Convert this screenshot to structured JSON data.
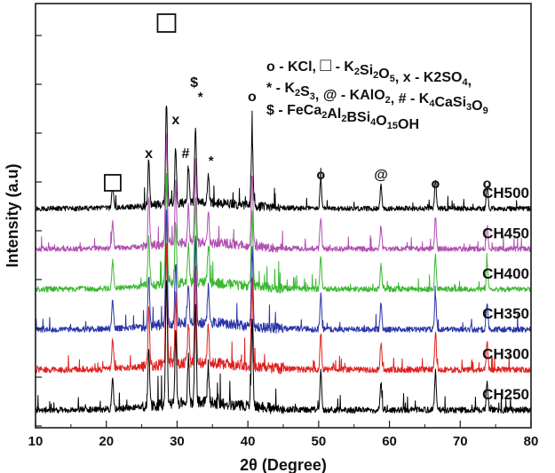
{
  "chart_data": {
    "type": "line",
    "title": "",
    "xlabel": "2θ (Degree)",
    "ylabel": "Intensity (a.u)",
    "xlim": [
      10,
      80
    ],
    "xticks": [
      10,
      20,
      30,
      40,
      50,
      60,
      70,
      80
    ],
    "y_ticks_labeled": false,
    "grid": false,
    "legend_position": "top-right",
    "legend_lines": [
      [
        {
          "text": "o - KCl, "
        },
        {
          "icon": "square"
        },
        {
          "text": " - K"
        },
        {
          "sub": "2"
        },
        {
          "text": "Si"
        },
        {
          "sub": "2"
        },
        {
          "text": "O"
        },
        {
          "sub": "5"
        },
        {
          "text": ", x - K2SO"
        },
        {
          "sub": "4"
        },
        {
          "text": ","
        }
      ],
      [
        {
          "text": "* - K"
        },
        {
          "sub": "2"
        },
        {
          "text": "S"
        },
        {
          "sub": "3"
        },
        {
          "text": ", @ - KAlO"
        },
        {
          "sub": "2"
        },
        {
          "text": ", # - K"
        },
        {
          "sub": "4"
        },
        {
          "text": "CaSi"
        },
        {
          "sub": "3"
        },
        {
          "text": "O"
        },
        {
          "sub": "9"
        }
      ],
      [
        {
          "text": "$ - FeCa"
        },
        {
          "sub": "2"
        },
        {
          "text": "Al"
        },
        {
          "sub": "2"
        },
        {
          "text": "BSi"
        },
        {
          "sub": "4"
        },
        {
          "text": "O"
        },
        {
          "sub": "15"
        },
        {
          "text": "OH"
        }
      ]
    ],
    "series": [
      {
        "name": "CH500",
        "color": "#000000",
        "baseline_level": 6
      },
      {
        "name": "CH450",
        "color": "#b050b0",
        "baseline_level": 5
      },
      {
        "name": "CH400",
        "color": "#3cb833",
        "baseline_level": 4
      },
      {
        "name": "CH350",
        "color": "#2a35a8",
        "baseline_level": 3
      },
      {
        "name": "CH300",
        "color": "#e02020",
        "baseline_level": 2
      },
      {
        "name": "CH250",
        "color": "#000000",
        "baseline_level": 1
      }
    ],
    "peaks_2theta": [
      {
        "x": 20.9,
        "rel": 0.25
      },
      {
        "x": 26.0,
        "rel": 0.45
      },
      {
        "x": 28.5,
        "rel": 1.0
      },
      {
        "x": 29.8,
        "rel": 0.55
      },
      {
        "x": 31.6,
        "rel": 0.35
      },
      {
        "x": 32.6,
        "rel": 0.75
      },
      {
        "x": 34.4,
        "rel": 0.3
      },
      {
        "x": 40.6,
        "rel": 0.7
      },
      {
        "x": 50.3,
        "rel": 0.3
      },
      {
        "x": 58.8,
        "rel": 0.22
      },
      {
        "x": 66.5,
        "rel": 0.3
      },
      {
        "x": 73.8,
        "rel": 0.22
      }
    ],
    "annotations": [
      {
        "symbol": "□",
        "x": 28.5,
        "tier": "top",
        "kind": "square"
      },
      {
        "symbol": "□",
        "x": 20.9,
        "tier": "low",
        "kind": "square"
      },
      {
        "symbol": "x",
        "x": 26.0,
        "tier": "mid",
        "kind": "text"
      },
      {
        "symbol": "x",
        "x": 29.8,
        "tier": "mid-high",
        "kind": "text"
      },
      {
        "symbol": "#",
        "x": 31.2,
        "tier": "mid",
        "kind": "text"
      },
      {
        "symbol": "$",
        "x": 32.4,
        "tier": "high",
        "kind": "text"
      },
      {
        "symbol": "*",
        "x": 33.3,
        "tier": "high-2",
        "kind": "text"
      },
      {
        "symbol": "*",
        "x": 34.8,
        "tier": "mid-low",
        "kind": "text"
      },
      {
        "symbol": "o",
        "x": 40.6,
        "tier": "high-2",
        "kind": "text"
      },
      {
        "symbol": "o",
        "x": 50.3,
        "tier": "low-2",
        "kind": "text"
      },
      {
        "symbol": "@",
        "x": 58.8,
        "tier": "low-2",
        "kind": "text"
      },
      {
        "symbol": "o",
        "x": 66.5,
        "tier": "low",
        "kind": "text"
      },
      {
        "symbol": "o",
        "x": 73.8,
        "tier": "low",
        "kind": "text"
      }
    ]
  }
}
